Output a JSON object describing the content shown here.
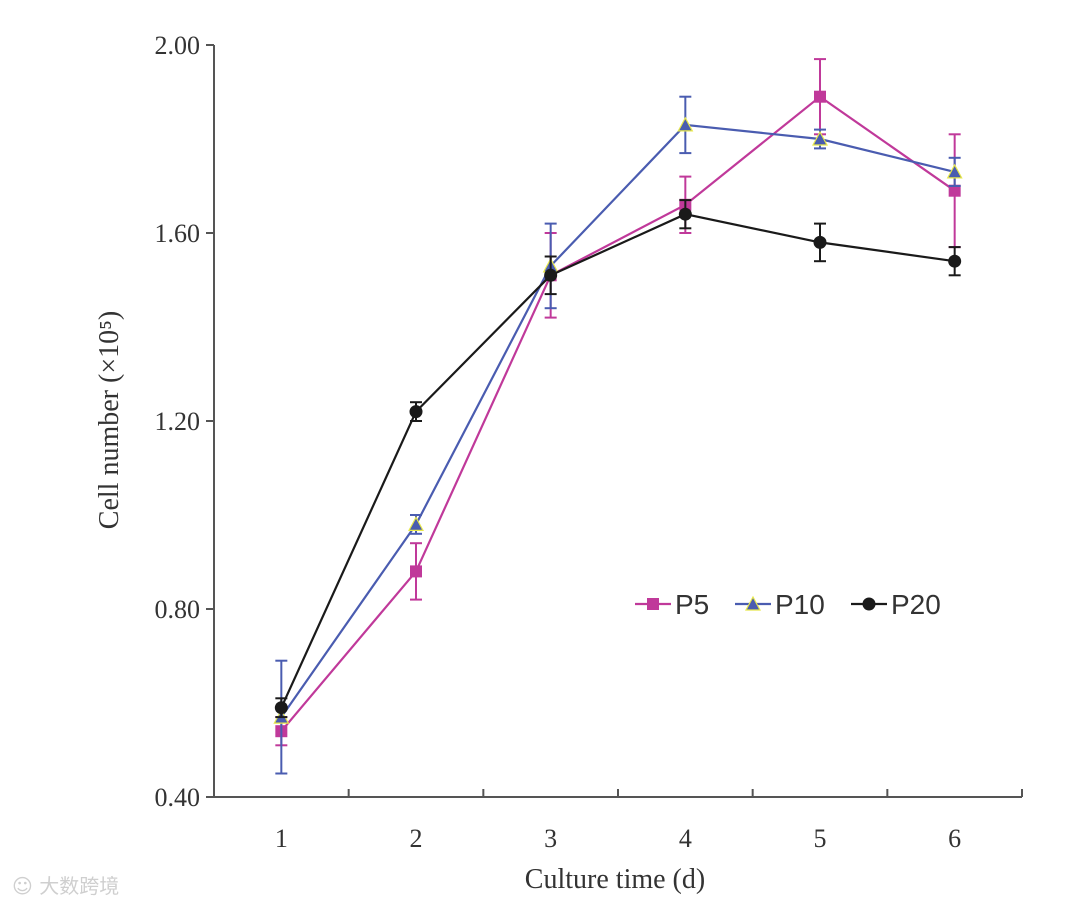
{
  "chart_data": {
    "type": "line",
    "title": "",
    "xlabel": "Culture time (d)",
    "ylabel": "Cell number (×10⁵)",
    "x": [
      1,
      2,
      3,
      4,
      5,
      6
    ],
    "x_tick_labels": [
      "1",
      "2",
      "3",
      "4",
      "5",
      "6"
    ],
    "ylim": [
      0.4,
      2.0
    ],
    "y_ticks": [
      0.4,
      0.8,
      1.2,
      1.6,
      2.0
    ],
    "y_tick_labels": [
      "0.40",
      "0.80",
      "1.20",
      "1.60",
      "2.00"
    ],
    "grid": false,
    "legend_position": "center-right",
    "series": [
      {
        "name": "P5",
        "color": "#c0399a",
        "marker": "square",
        "values": [
          0.54,
          0.88,
          1.51,
          1.66,
          1.89,
          1.69
        ],
        "errors": [
          0.03,
          0.06,
          0.09,
          0.06,
          0.08,
          0.12
        ]
      },
      {
        "name": "P10",
        "color": "#4a5cb0",
        "marker": "triangle",
        "values": [
          0.57,
          0.98,
          1.53,
          1.83,
          1.8,
          1.73
        ],
        "errors": [
          0.12,
          0.02,
          0.09,
          0.06,
          0.02,
          0.03
        ]
      },
      {
        "name": "P20",
        "color": "#1a1a1a",
        "marker": "circle",
        "values": [
          0.59,
          1.22,
          1.51,
          1.64,
          1.58,
          1.54
        ],
        "errors": [
          0.02,
          0.02,
          0.04,
          0.03,
          0.04,
          0.03
        ]
      }
    ]
  },
  "watermark": {
    "text": "大数跨境"
  }
}
